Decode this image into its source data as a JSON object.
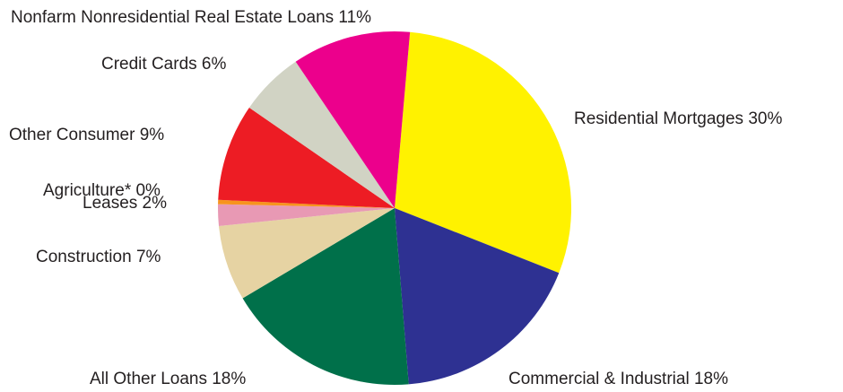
{
  "chart_data": {
    "type": "pie",
    "slices": [
      {
        "name": "Residential Mortgages",
        "value": 30,
        "label": "Residential Mortgages 30%",
        "color": "#fff200"
      },
      {
        "name": "Commercial & Industrial",
        "value": 18,
        "label": "Commercial & Industrial 18%",
        "color": "#2e3192"
      },
      {
        "name": "All Other Loans",
        "value": 18,
        "label": "All Other Loans 18%",
        "color": "#00704a"
      },
      {
        "name": "Construction",
        "value": 7,
        "label": "Construction 7%",
        "color": "#e6d3a3"
      },
      {
        "name": "Leases",
        "value": 2,
        "label": "Leases 2%",
        "color": "#e899b4"
      },
      {
        "name": "Agriculture*",
        "value": 0.4,
        "label": "Agriculture* 0%",
        "color": "#f7941d"
      },
      {
        "name": "Other Consumer",
        "value": 9,
        "label": "Other Consumer 9%",
        "color": "#ed1c24"
      },
      {
        "name": "Credit Cards",
        "value": 6,
        "label": "Credit Cards 6%",
        "color": "#d1d3c4"
      },
      {
        "name": "Nonfarm Nonresidential Real Estate Loans",
        "value": 11,
        "label": "Nonfarm Nonresidential Real Estate Loans 11%",
        "color": "#ec008c"
      }
    ],
    "start_angle_deg": 5,
    "direction": "clockwise"
  }
}
